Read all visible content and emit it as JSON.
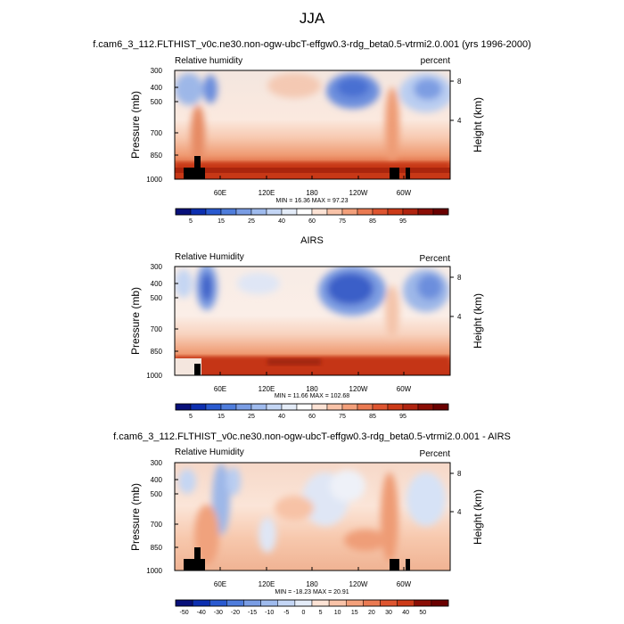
{
  "figure": {
    "title": "JJA"
  },
  "chart_data": [
    {
      "type": "heatmap",
      "title": "f.cam6_3_112.FLTHIST_v0c.ne30.non-ogw-ubcT-effgw0.3-rdg_beta0.5-vtrmi2.0.001 (yrs 1996-2000)",
      "left_label": "Relative humidity",
      "right_label": "percent",
      "ylabel": "Pressure (mb)",
      "ylabel_right": "Height (km)",
      "x_ticks": [
        "60E",
        "120E",
        "180",
        "120W",
        "60W"
      ],
      "y_ticks": [
        "300",
        "400",
        "500",
        "700",
        "850",
        "1000"
      ],
      "y_right_ticks": [
        "8",
        "4"
      ],
      "stats": "MIN =  16.36  MAX =  97.23",
      "colorbar_labels": [
        "5",
        "15",
        "25",
        "40",
        "60",
        "75",
        "85",
        "95"
      ],
      "levels": [
        5,
        10,
        15,
        20,
        25,
        30,
        35,
        40,
        50,
        60,
        65,
        70,
        75,
        80,
        85,
        90,
        95
      ]
    },
    {
      "type": "heatmap",
      "title": "AIRS",
      "left_label": "Relative Humidity",
      "right_label": "Percent",
      "ylabel": "Pressure (mb)",
      "ylabel_right": "Height (km)",
      "x_ticks": [
        "60E",
        "120E",
        "180",
        "120W",
        "60W"
      ],
      "y_ticks": [
        "300",
        "400",
        "500",
        "700",
        "850",
        "1000"
      ],
      "y_right_ticks": [
        "8",
        "4"
      ],
      "stats": "MIN =  11.66  MAX = 102.68",
      "colorbar_labels": [
        "5",
        "15",
        "25",
        "40",
        "60",
        "75",
        "85",
        "95"
      ],
      "levels": [
        5,
        10,
        15,
        20,
        25,
        30,
        35,
        40,
        50,
        60,
        65,
        70,
        75,
        80,
        85,
        90,
        95
      ]
    },
    {
      "type": "heatmap",
      "title": "f.cam6_3_112.FLTHIST_v0c.ne30.non-ogw-ubcT-effgw0.3-rdg_beta0.5-vtrmi2.0.001 - AIRS",
      "left_label": "Relative Humidity",
      "right_label": "Percent",
      "ylabel": "Pressure (mb)",
      "ylabel_right": "Height (km)",
      "x_ticks": [
        "60E",
        "120E",
        "180",
        "120W",
        "60W"
      ],
      "y_ticks": [
        "300",
        "400",
        "500",
        "700",
        "850",
        "1000"
      ],
      "y_right_ticks": [
        "8",
        "4"
      ],
      "stats": "MIN = -18.23  MAX =  20.91",
      "colorbar_labels": [
        "-50",
        "-40",
        "-30",
        "-20",
        "-15",
        "-10",
        "-5",
        "0",
        "5",
        "10",
        "15",
        "20",
        "30",
        "40",
        "50"
      ],
      "levels": [
        -50,
        -40,
        -30,
        -20,
        -15,
        -10,
        -5,
        0,
        5,
        10,
        15,
        20,
        30,
        40,
        50
      ]
    }
  ]
}
